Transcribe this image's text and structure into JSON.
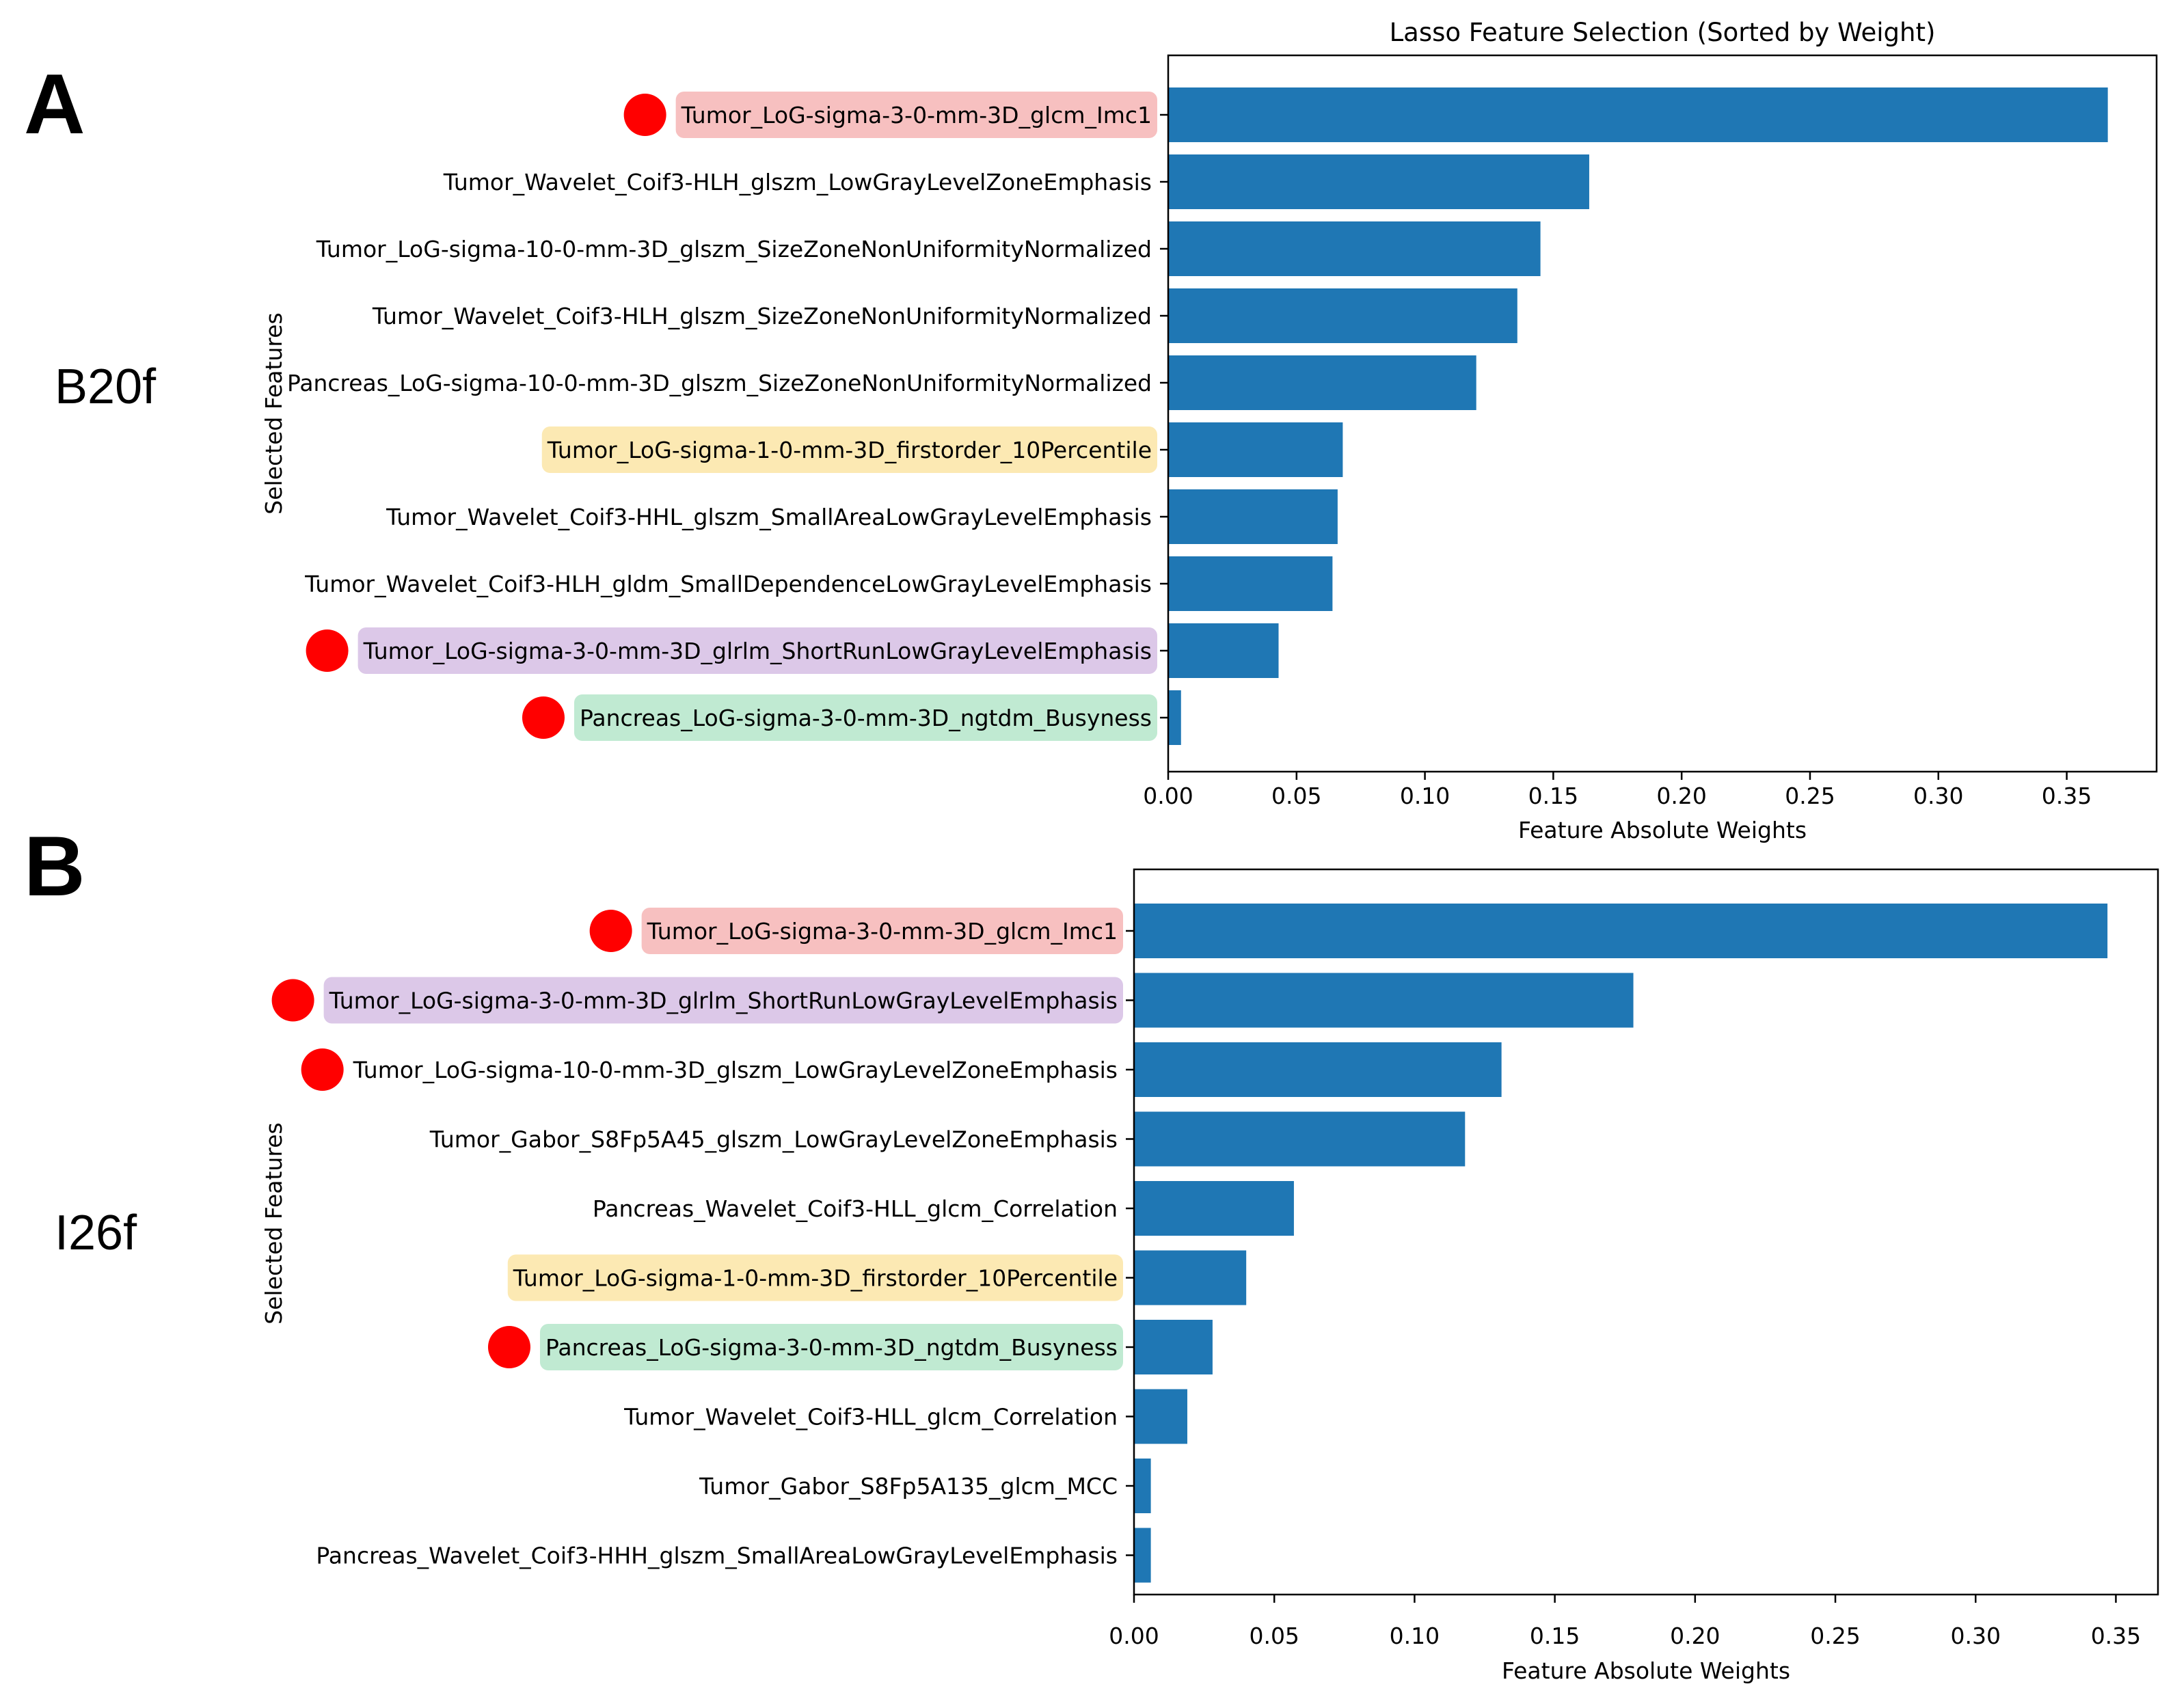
{
  "colors": {
    "bar": "#1f77b4",
    "marker": "#ff0000",
    "highlight": {
      "red": "#f7c0c0",
      "yellow": "#fce9b3",
      "purple": "#dcc8e8",
      "green": "#c0ead2"
    }
  },
  "chart_data": [
    {
      "type": "bar",
      "orientation": "horizontal",
      "panel_label": "A",
      "dataset_label": "B20f",
      "title": "Lasso Feature Selection (Sorted by Weight)",
      "xlabel": "Feature Absolute Weights",
      "ylabel": "Selected Features",
      "xlim": [
        0,
        0.385
      ],
      "xticks": [
        "0.00",
        "0.05",
        "0.10",
        "0.15",
        "0.20",
        "0.25",
        "0.30",
        "0.35"
      ],
      "grid": false,
      "categories": [
        "Tumor_LoG-sigma-3-0-mm-3D_glcm_Imc1",
        "Tumor_Wavelet_Coif3-HLH_glszm_LowGrayLevelZoneEmphasis",
        "Tumor_LoG-sigma-10-0-mm-3D_glszm_SizeZoneNonUniformityNormalized",
        "Tumor_Wavelet_Coif3-HLH_glszm_SizeZoneNonUniformityNormalized",
        "Pancreas_LoG-sigma-10-0-mm-3D_glszm_SizeZoneNonUniformityNormalized",
        "Tumor_LoG-sigma-1-0-mm-3D_firstorder_10Percentile",
        "Tumor_Wavelet_Coif3-HHL_glszm_SmallAreaLowGrayLevelEmphasis",
        "Tumor_Wavelet_Coif3-HLH_gldm_SmallDependenceLowGrayLevelEmphasis",
        "Tumor_LoG-sigma-3-0-mm-3D_glrlm_ShortRunLowGrayLevelEmphasis",
        "Pancreas_LoG-sigma-3-0-mm-3D_ngtdm_Busyness"
      ],
      "values": [
        0.366,
        0.164,
        0.145,
        0.136,
        0.12,
        0.068,
        0.066,
        0.064,
        0.043,
        0.005
      ],
      "highlights": [
        "red",
        null,
        null,
        null,
        null,
        "yellow",
        null,
        null,
        "purple",
        "green"
      ],
      "markers": [
        true,
        false,
        false,
        false,
        false,
        false,
        false,
        false,
        true,
        true
      ]
    },
    {
      "type": "bar",
      "orientation": "horizontal",
      "panel_label": "B",
      "dataset_label": "I26f",
      "title": "",
      "xlabel": "Feature Absolute Weights",
      "ylabel": "Selected Features",
      "xlim": [
        0,
        0.365
      ],
      "xticks": [
        "0.00",
        "0.05",
        "0.10",
        "0.15",
        "0.20",
        "0.25",
        "0.30",
        "0.35"
      ],
      "grid": false,
      "categories": [
        "Tumor_LoG-sigma-3-0-mm-3D_glcm_Imc1",
        "Tumor_LoG-sigma-3-0-mm-3D_glrlm_ShortRunLowGrayLevelEmphasis",
        "Tumor_LoG-sigma-10-0-mm-3D_glszm_LowGrayLevelZoneEmphasis",
        "Tumor_Gabor_S8Fp5A45_glszm_LowGrayLevelZoneEmphasis",
        "Pancreas_Wavelet_Coif3-HLL_glcm_Correlation",
        "Tumor_LoG-sigma-1-0-mm-3D_firstorder_10Percentile",
        "Pancreas_LoG-sigma-3-0-mm-3D_ngtdm_Busyness",
        "Tumor_Wavelet_Coif3-HLL_glcm_Correlation",
        "Tumor_Gabor_S8Fp5A135_glcm_MCC",
        "Pancreas_Wavelet_Coif3-HHH_glszm_SmallAreaLowGrayLevelEmphasis"
      ],
      "values": [
        0.347,
        0.178,
        0.131,
        0.118,
        0.057,
        0.04,
        0.028,
        0.019,
        0.006,
        0.006
      ],
      "highlights": [
        "red",
        "purple",
        null,
        null,
        null,
        "yellow",
        "green",
        null,
        null,
        null
      ],
      "markers": [
        true,
        true,
        true,
        false,
        false,
        false,
        true,
        false,
        false,
        false
      ]
    }
  ]
}
